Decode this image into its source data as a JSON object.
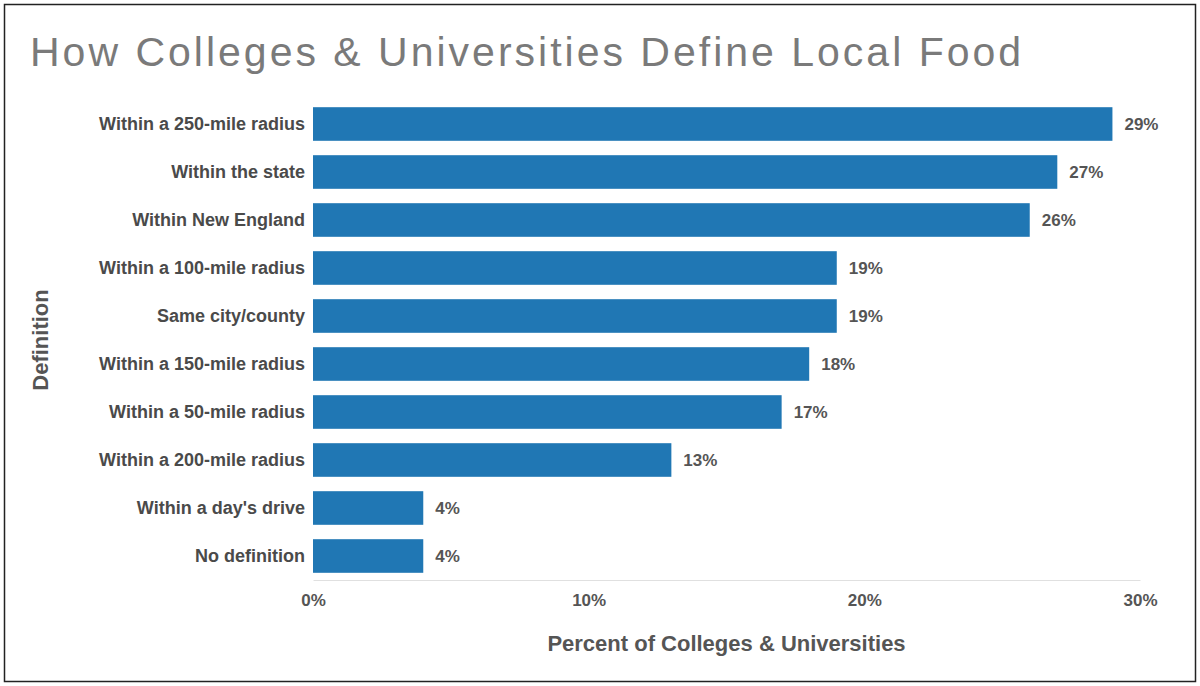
{
  "chart_data": {
    "type": "bar",
    "orientation": "horizontal",
    "title": "How Colleges & Universities Define Local Food",
    "categories": [
      "Within a 250-mile radius",
      "Within the state",
      "Within New England",
      "Within a 100-mile radius",
      "Same city/county",
      "Within a 150-mile radius",
      "Within a 50-mile radius",
      "Within a 200-mile radius",
      "Within a day's drive",
      "No definition"
    ],
    "values": [
      29,
      27,
      26,
      19,
      19,
      18,
      17,
      13,
      4,
      4
    ],
    "value_labels": [
      "29%",
      "27%",
      "26%",
      "19%",
      "19%",
      "18%",
      "17%",
      "13%",
      "4%",
      "4%"
    ],
    "color": "#2077b4",
    "xlim": [
      0,
      30
    ],
    "xticks": [
      {
        "value": 0,
        "label": "0%"
      },
      {
        "value": 10,
        "label": "10%"
      },
      {
        "value": 20,
        "label": "20%"
      },
      {
        "value": 30,
        "label": "30%"
      }
    ],
    "x_label": "Percent of Colleges & Universities",
    "y_label": "Definition",
    "data_labels": true,
    "grid": false
  }
}
